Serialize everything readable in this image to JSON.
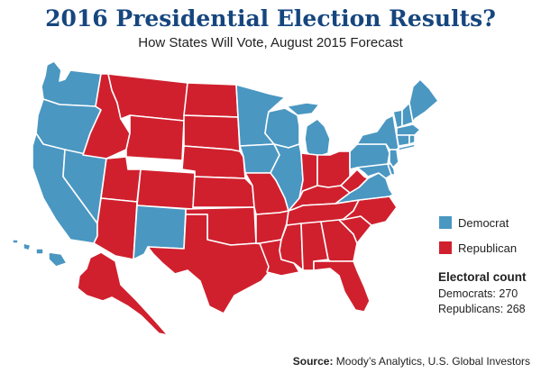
{
  "title": "2016 Presidential Election Results?",
  "subtitle": "How States Will Vote, August 2015 Forecast",
  "colors": {
    "democrat": "#4a97c2",
    "republican": "#d0202e"
  },
  "legend": {
    "democrat": "Democrat",
    "republican": "Republican"
  },
  "electoral": {
    "title": "Electoral count",
    "democrats": "Democrats: 270",
    "republicans": "Republicans: 268"
  },
  "source": {
    "label": "Source:",
    "text": "Moody’s Analytics, U.S. Global Investors"
  },
  "states": {
    "WA": "D",
    "OR": "D",
    "CA": "D",
    "NV": "D",
    "ID": "R",
    "MT": "R",
    "WY": "R",
    "UT": "R",
    "AZ": "R",
    "CO": "R",
    "NM": "D",
    "ND": "R",
    "SD": "R",
    "NE": "R",
    "KS": "R",
    "OK": "R",
    "TX": "R",
    "MN": "D",
    "IA": "D",
    "MO": "R",
    "AR": "R",
    "LA": "R",
    "WI": "D",
    "IL": "D",
    "MI": "D",
    "IN": "R",
    "OH": "R",
    "KY": "R",
    "TN": "R",
    "MS": "R",
    "AL": "R",
    "GA": "R",
    "FL": "R",
    "SC": "R",
    "NC": "R",
    "VA": "D",
    "WV": "R",
    "PA": "D",
    "NY": "D",
    "VT": "D",
    "NH": "D",
    "ME": "D",
    "MA": "D",
    "RI": "D",
    "CT": "D",
    "NJ": "D",
    "DE": "D",
    "MD": "D",
    "AK": "R",
    "HI": "D"
  }
}
